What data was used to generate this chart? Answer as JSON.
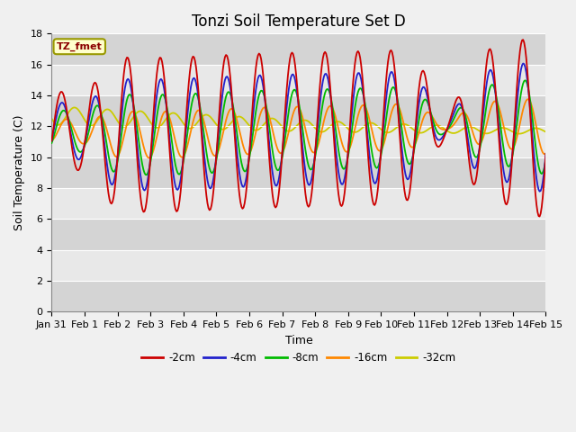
{
  "title": "Tonzi Soil Temperature Set D",
  "xlabel": "Time",
  "ylabel": "Soil Temperature (C)",
  "ylim": [
    0,
    18
  ],
  "yticks": [
    0,
    2,
    4,
    6,
    8,
    10,
    12,
    14,
    16,
    18
  ],
  "legend_label": "TZ_fmet",
  "series_labels": [
    "-2cm",
    "-4cm",
    "-8cm",
    "-16cm",
    "-32cm"
  ],
  "series_colors": [
    "#cc0000",
    "#2222cc",
    "#00bb00",
    "#ff8800",
    "#cccc00"
  ],
  "background_color": "#f0f0f0",
  "plot_bg_color": "#e8e8e8",
  "band_colors": [
    "#d4d4d4",
    "#e8e8e8"
  ],
  "title_fontsize": 12,
  "axis_fontsize": 9,
  "tick_fontsize": 8,
  "xticklabels": [
    "Jan 31",
    "Feb 1",
    "Feb 2",
    "Feb 3",
    "Feb 4",
    "Feb 5",
    "Feb 6",
    "Feb 7",
    "Feb 8",
    "Feb 9",
    "Feb 10",
    "Feb 11",
    "Feb 12",
    "Feb 13",
    "Feb 14",
    "Feb 15"
  ],
  "n_points": 480
}
